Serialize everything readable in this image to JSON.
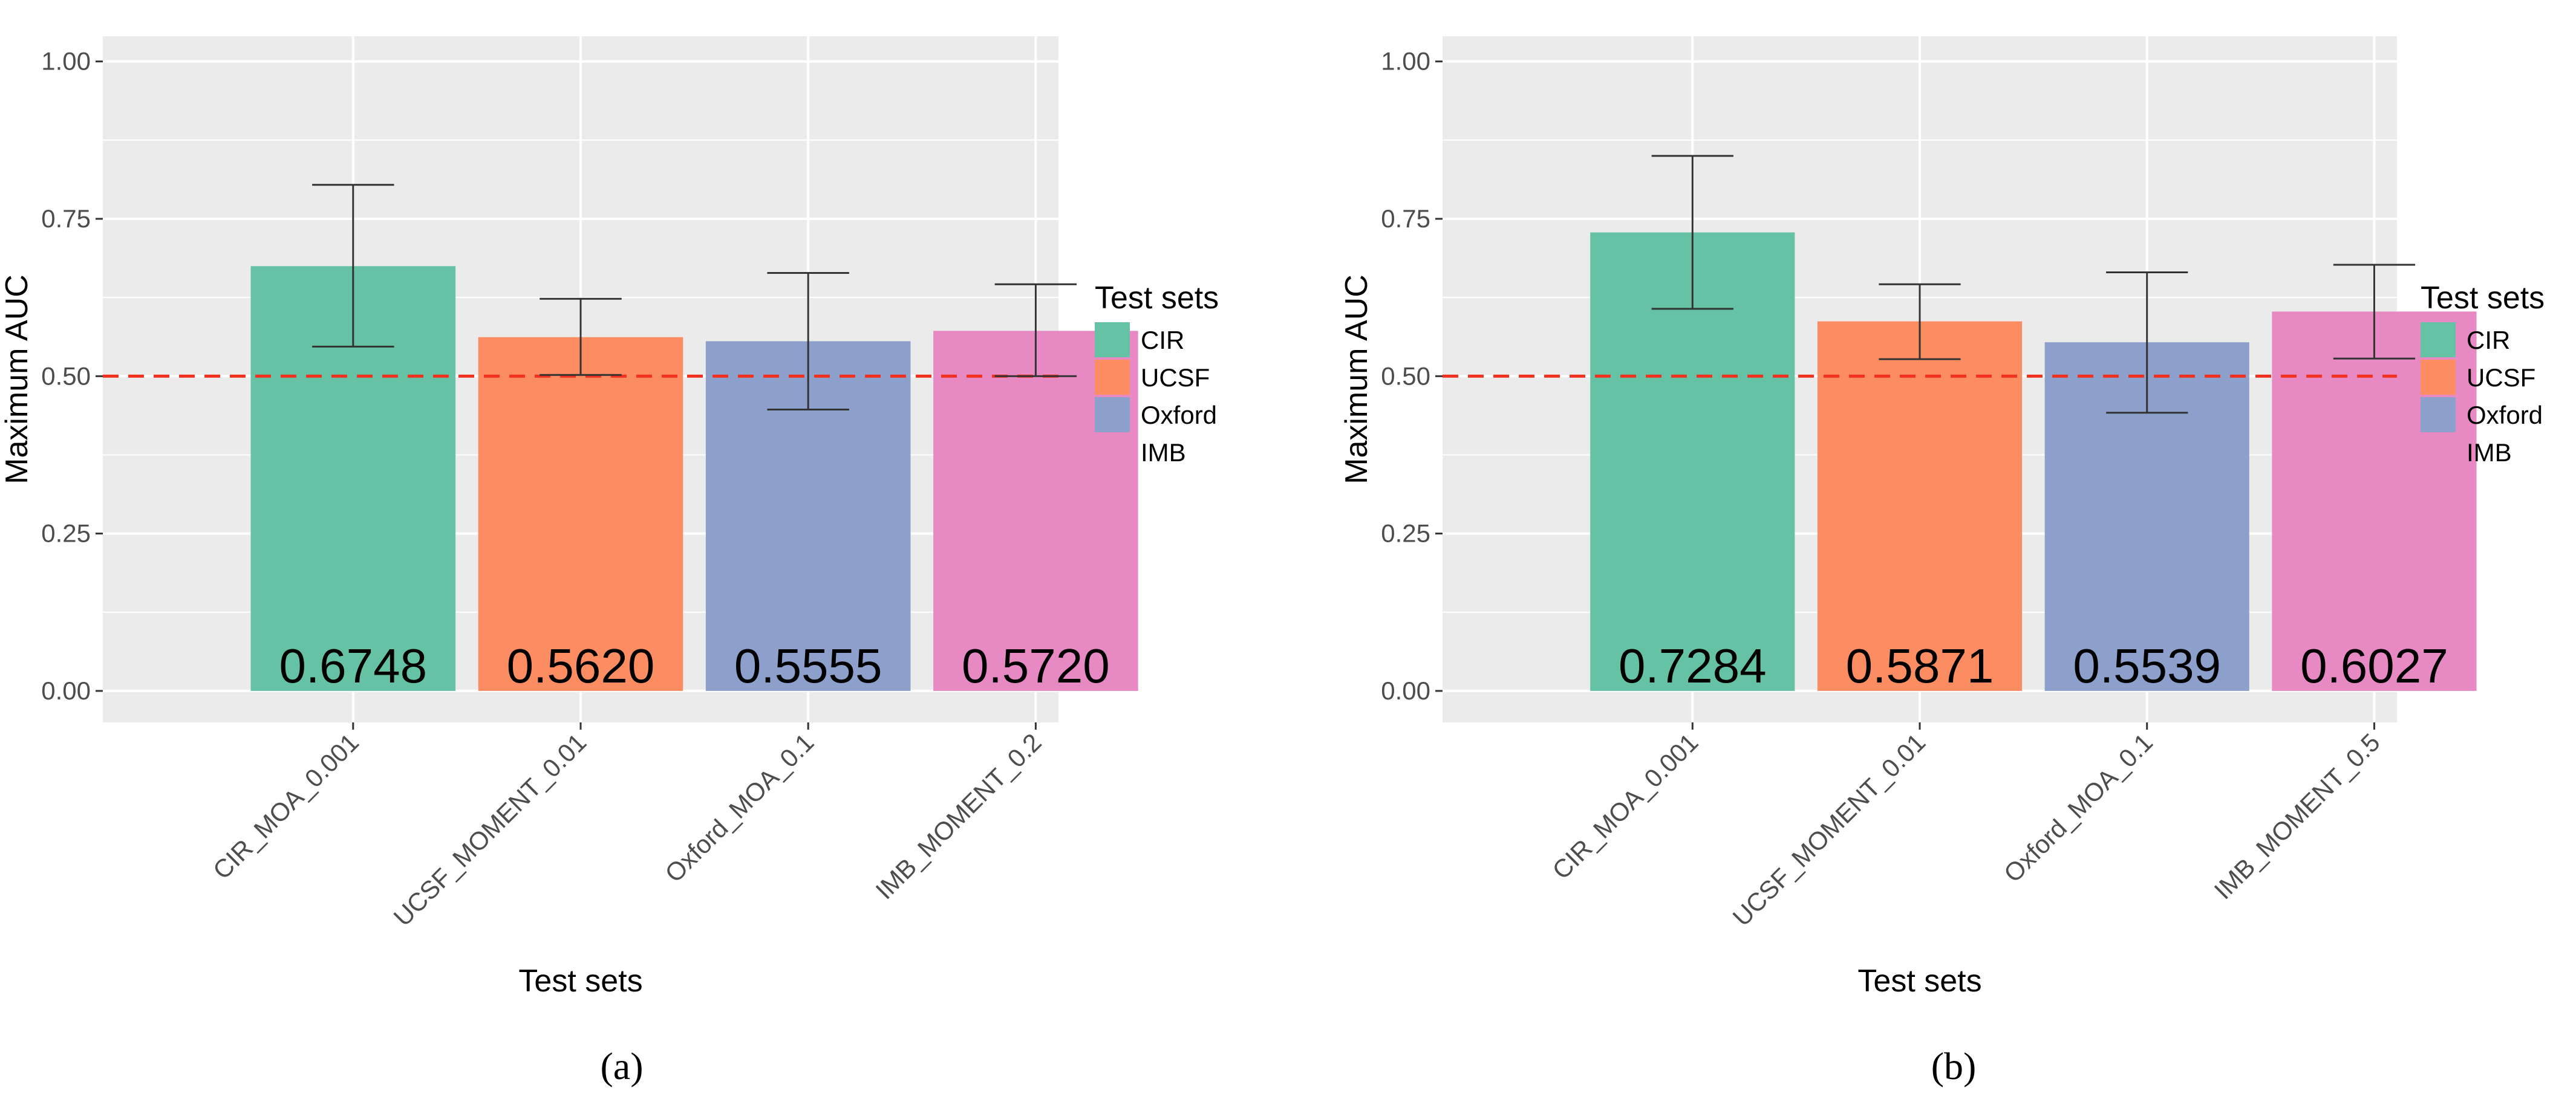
{
  "chart_data": [
    {
      "type": "bar",
      "panel_caption": "(a)",
      "categories": [
        "CIR_MOA_0.001",
        "UCSF_MOMENT_0.01",
        "Oxford_MOA_0.1",
        "IMB_MOMENT_0.2"
      ],
      "values": [
        0.6748,
        0.562,
        0.5555,
        0.572
      ],
      "value_labels": [
        "0.6748",
        "0.5620",
        "0.5555",
        "0.5720"
      ],
      "error_low": [
        0.547,
        0.502,
        0.447,
        0.5
      ],
      "error_high": [
        0.804,
        0.623,
        0.664,
        0.646
      ],
      "groups": [
        "CIR",
        "UCSF",
        "Oxford",
        "IMB"
      ],
      "xlabel": "Test sets",
      "ylabel": "Maximum AUC",
      "ylim": [
        -0.05,
        1.04
      ],
      "yticks": [
        0,
        0.25,
        0.5,
        0.75,
        1.0
      ],
      "ytick_labels": [
        "0.00",
        "0.25",
        "0.50",
        "0.75",
        "1.00"
      ],
      "reference_line": {
        "y": 0.5,
        "style": "dashed",
        "color": "#f2301d"
      },
      "legend": {
        "title": "Test sets",
        "position": "right",
        "entries": [
          "CIR",
          "UCSF",
          "Oxford",
          "IMB"
        ]
      }
    },
    {
      "type": "bar",
      "panel_caption": "(b)",
      "categories": [
        "CIR_MOA_0.001",
        "UCSF_MOMENT_0.01",
        "Oxford_MOA_0.1",
        "IMB_MOMENT_0.5"
      ],
      "values": [
        0.7284,
        0.5871,
        0.5539,
        0.6027
      ],
      "value_labels": [
        "0.7284",
        "0.5871",
        "0.5539",
        "0.6027"
      ],
      "error_low": [
        0.607,
        0.527,
        0.442,
        0.528
      ],
      "error_high": [
        0.85,
        0.646,
        0.665,
        0.677
      ],
      "groups": [
        "CIR",
        "UCSF",
        "Oxford",
        "IMB"
      ],
      "xlabel": "Test sets",
      "ylabel": "Maximum AUC",
      "ylim": [
        -0.05,
        1.04
      ],
      "yticks": [
        0,
        0.25,
        0.5,
        0.75,
        1.0
      ],
      "ytick_labels": [
        "0.00",
        "0.25",
        "0.50",
        "0.75",
        "1.00"
      ],
      "reference_line": {
        "y": 0.5,
        "style": "dashed",
        "color": "#f2301d"
      },
      "legend": {
        "title": "Test sets",
        "position": "right",
        "entries": [
          "CIR",
          "UCSF",
          "Oxford",
          "IMB"
        ]
      }
    }
  ],
  "colors": {
    "CIR": "#66c2a5",
    "UCSF": "#fc8d62",
    "Oxford": "#8da0cb",
    "IMB": "#e78ac3",
    "panel_background": "#ebebeb",
    "grid": "#ffffff",
    "error_bar": "#333333"
  }
}
